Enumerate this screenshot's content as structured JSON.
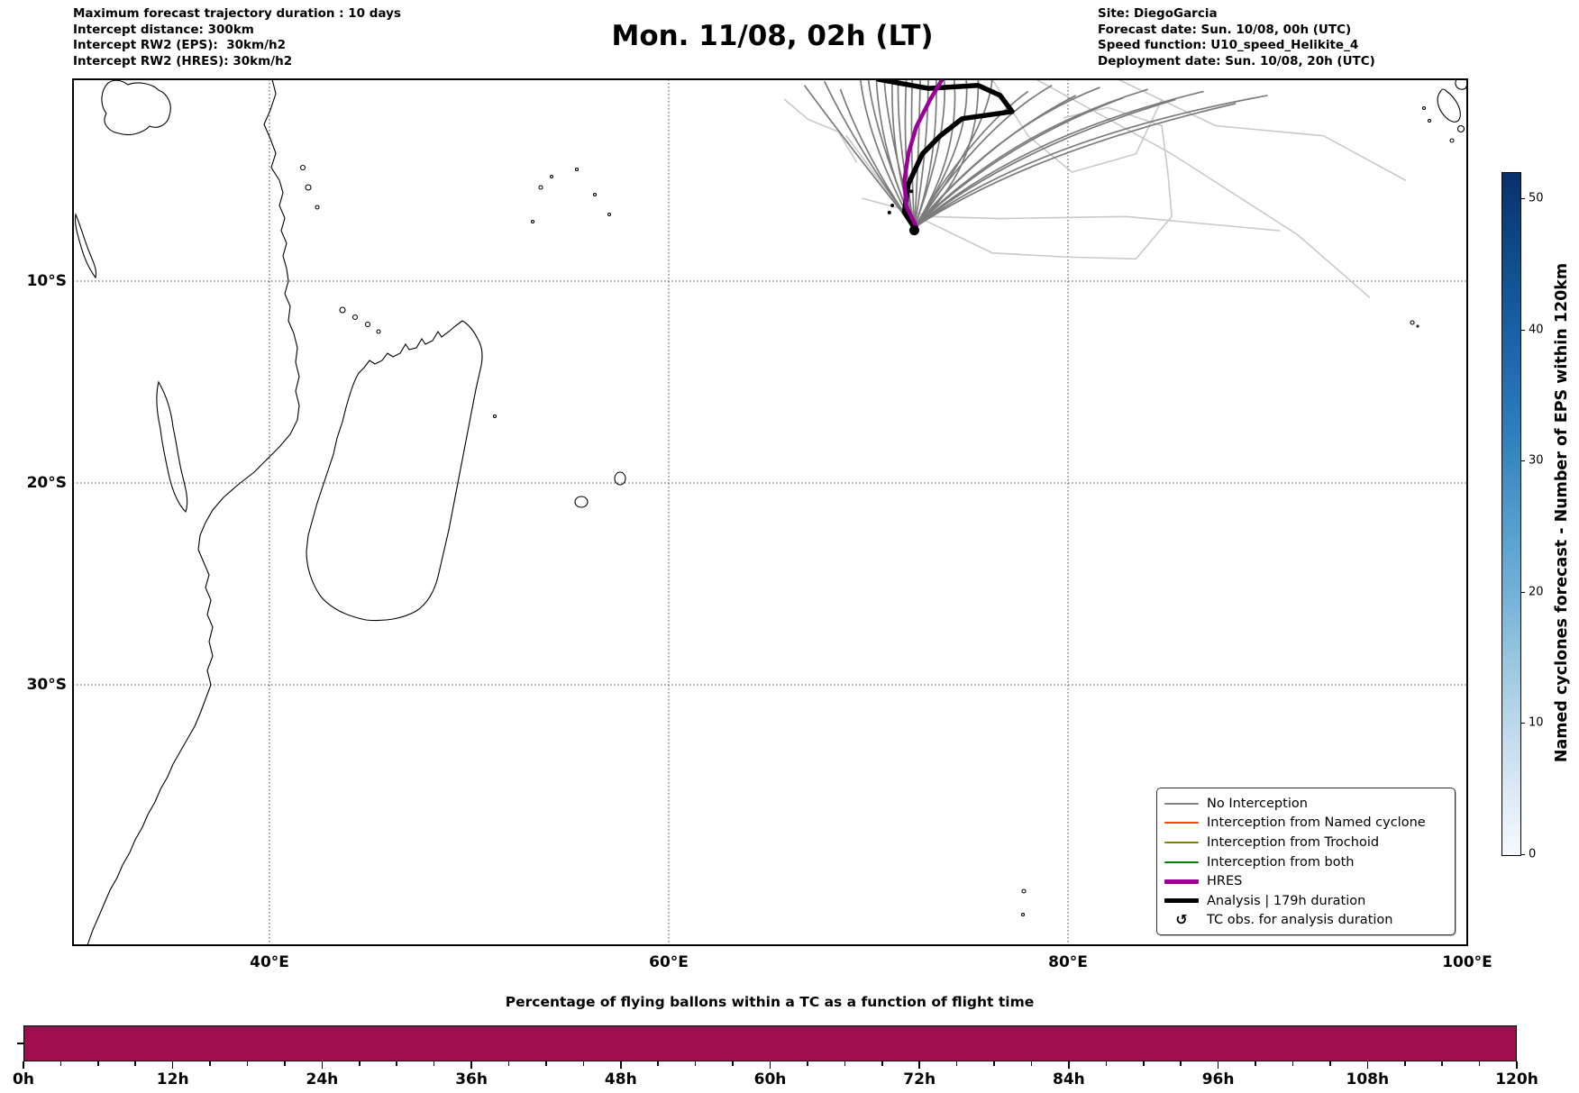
{
  "header": {
    "left_lines": [
      "Maximum forecast trajectory duration : 10 days",
      "Intercept distance: 300km",
      "Intercept RW2 (EPS):  30km/h2",
      "Intercept RW2 (HRES): 30km/h2"
    ],
    "title": "Mon. 11/08, 02h (LT)",
    "right_lines": [
      "Site: DiegoGarcia",
      "Forecast date: Sun. 10/08, 00h (UTC)",
      "Speed function: U10_speed_Helikite_4",
      "Deployment date: Sun. 10/08, 20h (UTC)"
    ]
  },
  "map": {
    "lat_ticks": [
      {
        "label": "10°S",
        "lat": 10
      },
      {
        "label": "20°S",
        "lat": 20
      },
      {
        "label": "30°S",
        "lat": 30
      }
    ],
    "lon_ticks": [
      {
        "label": "40°E",
        "lon": 40
      },
      {
        "label": "60°E",
        "lon": 60
      },
      {
        "label": "80°E",
        "lon": 80
      },
      {
        "label": "100°E",
        "lon": 100
      }
    ],
    "extent_lon": [
      30.2,
      100.0
    ],
    "extent_lat_south": [
      0.0,
      43.4
    ]
  },
  "legend": {
    "items": [
      {
        "label": "No Interception",
        "type": "line",
        "color": "#808080",
        "weight": 2
      },
      {
        "label": "Interception from Named cyclone",
        "type": "line",
        "color": "#ff4500",
        "weight": 2
      },
      {
        "label": "Interception from Trochoid",
        "type": "line",
        "color": "#808000",
        "weight": 2
      },
      {
        "label": "Interception from both",
        "type": "line",
        "color": "#008000",
        "weight": 2
      },
      {
        "label": "HRES",
        "type": "line",
        "color": "#990099",
        "weight": 5
      },
      {
        "label": "Analysis | 179h duration",
        "type": "line",
        "color": "#000000",
        "weight": 5
      },
      {
        "label": "TC obs. for analysis duration",
        "type": "symbol",
        "symbol": "↺",
        "color": "#000000"
      }
    ]
  },
  "colorbar": {
    "title": "Named cyclones forecast - Number of EPS within 120km",
    "ticks": [
      0,
      10,
      20,
      30,
      40,
      50
    ],
    "vmin": 0,
    "vmax": 52,
    "colormap": "Blues"
  },
  "chart_data": [
    {
      "type": "line",
      "name": "trajectory-map",
      "title": "Balloon forecast trajectories from DiegoGarcia",
      "launch_point_lonlat": [
        72.3,
        7.35
      ],
      "analysis_track": {
        "name": "Analysis | 179h duration",
        "color": "#000000",
        "points": [
          [
            70.5,
            0.0
          ],
          [
            73.0,
            0.45
          ],
          [
            75.5,
            0.3
          ],
          [
            76.6,
            0.8
          ],
          [
            77.2,
            1.6
          ],
          [
            74.7,
            1.95
          ],
          [
            73.6,
            2.8
          ],
          [
            72.7,
            3.7
          ],
          [
            72.0,
            5.2
          ],
          [
            71.8,
            6.6
          ],
          [
            72.3,
            7.35
          ]
        ]
      },
      "hres_track": {
        "name": "HRES",
        "color": "#990099",
        "points": [
          [
            73.7,
            0.0
          ],
          [
            73.1,
            1.0
          ],
          [
            72.4,
            2.35
          ],
          [
            72.0,
            3.7
          ],
          [
            71.8,
            5.05
          ],
          [
            71.9,
            6.3
          ],
          [
            72.4,
            7.3
          ]
        ]
      },
      "ensemble_no_interception": {
        "name": "No Interception",
        "color": "#7b7b7b",
        "count": 29,
        "members": [
          {
            "s": [
              69.6,
              0.0
            ],
            "c": [
              70.0,
              3.2
            ]
          },
          {
            "s": [
              70.0,
              0.0
            ],
            "c": [
              70.3,
              2.6
            ]
          },
          {
            "s": [
              70.4,
              0.0
            ],
            "c": [
              70.6,
              3.6
            ]
          },
          {
            "s": [
              70.8,
              0.0
            ],
            "c": [
              70.9,
              2.2
            ]
          },
          {
            "s": [
              71.2,
              0.0
            ],
            "c": [
              71.1,
              3.9
            ]
          },
          {
            "s": [
              71.5,
              0.0
            ],
            "c": [
              71.4,
              2.9
            ]
          },
          {
            "s": [
              71.9,
              0.0
            ],
            "c": [
              71.7,
              4.3
            ]
          },
          {
            "s": [
              72.2,
              0.0
            ],
            "c": [
              72.1,
              3.1
            ]
          },
          {
            "s": [
              72.6,
              0.0
            ],
            "c": [
              72.5,
              4.6
            ]
          },
          {
            "s": [
              73.0,
              0.0
            ],
            "c": [
              73.0,
              3.4
            ]
          },
          {
            "s": [
              73.4,
              0.0
            ],
            "c": [
              73.5,
              4.1
            ]
          },
          {
            "s": [
              73.8,
              0.0
            ],
            "c": [
              74.0,
              2.8
            ]
          },
          {
            "s": [
              74.3,
              0.0
            ],
            "c": [
              74.6,
              3.8
            ]
          },
          {
            "s": [
              74.9,
              0.0
            ],
            "c": [
              75.2,
              3.0
            ]
          },
          {
            "s": [
              75.5,
              0.0
            ],
            "c": [
              75.6,
              4.4
            ]
          },
          {
            "s": [
              76.2,
              0.0
            ],
            "c": [
              76.0,
              2.5
            ]
          },
          {
            "s": [
              78.0,
              0.6
            ],
            "c": [
              75.2,
              2.6
            ]
          },
          {
            "s": [
              79.2,
              0.3
            ],
            "c": [
              75.8,
              2.2
            ]
          },
          {
            "s": [
              80.4,
              0.8
            ],
            "c": [
              76.0,
              3.0
            ]
          },
          {
            "s": [
              81.6,
              0.4
            ],
            "c": [
              76.4,
              2.4
            ]
          },
          {
            "s": [
              82.8,
              0.9
            ],
            "c": [
              76.6,
              3.2
            ]
          },
          {
            "s": [
              84.0,
              0.5
            ],
            "c": [
              77.0,
              2.6
            ]
          },
          {
            "s": [
              85.4,
              1.0
            ],
            "c": [
              77.2,
              3.4
            ]
          },
          {
            "s": [
              86.8,
              0.6
            ],
            "c": [
              77.6,
              2.8
            ]
          },
          {
            "s": [
              88.4,
              1.2
            ],
            "c": [
              78.0,
              3.6
            ]
          },
          {
            "s": [
              90.0,
              0.8
            ],
            "c": [
              78.4,
              2.9
            ]
          },
          {
            "s": [
              66.8,
              0.3
            ],
            "c": [
              68.8,
              3.0
            ]
          },
          {
            "s": [
              67.8,
              0.1
            ],
            "c": [
              69.4,
              3.4
            ]
          },
          {
            "s": [
              68.6,
              0.5
            ],
            "c": [
              69.9,
              4.0
            ]
          }
        ]
      },
      "faint_tracks": {
        "color": "#c9c9c9",
        "lines": [
          [
            [
              68.9,
              2.8
            ],
            [
              71.6,
              6.4
            ],
            [
              76.2,
              8.6
            ],
            [
              79.8,
              8.8
            ],
            [
              83.4,
              8.9
            ],
            [
              85.2,
              6.8
            ],
            [
              85.0,
              4.6
            ],
            [
              84.7,
              2.3
            ],
            [
              82.0,
              1.4
            ],
            [
              79.8,
              1.9
            ]
          ],
          [
            [
              69.7,
              5.9
            ],
            [
              73.1,
              6.8
            ],
            [
              76.6,
              6.9
            ],
            [
              82.9,
              6.8
            ],
            [
              90.6,
              7.5
            ]
          ],
          [
            [
              78.4,
              0.0
            ],
            [
              85.2,
              3.7
            ],
            [
              91.5,
              7.7
            ],
            [
              95.1,
              10.8
            ]
          ],
          [
            [
              82.5,
              0.0
            ],
            [
              87.4,
              2.3
            ],
            [
              92.8,
              2.8
            ],
            [
              96.9,
              5.0
            ]
          ],
          [
            [
              65.8,
              1.0
            ],
            [
              67.0,
              2.0
            ],
            [
              68.5,
              2.6
            ],
            [
              69.4,
              4.1
            ]
          ],
          [
            [
              76.2,
              0.0
            ],
            [
              78.0,
              2.8
            ],
            [
              80.2,
              4.6
            ],
            [
              83.4,
              3.7
            ],
            [
              84.7,
              1.0
            ]
          ]
        ]
      },
      "tc_obs_points_lonlat": [
        [
          71.2,
          6.25
        ],
        [
          71.05,
          6.6
        ],
        [
          72.15,
          5.55
        ]
      ]
    },
    {
      "type": "bar",
      "name": "balloon-percentage",
      "title": "Percentage of flying ballons within a TC as a function of flight time",
      "x_tick_labels": [
        "0h",
        "12h",
        "24h",
        "36h",
        "48h",
        "60h",
        "72h",
        "84h",
        "96h",
        "108h",
        "120h"
      ],
      "x_range_hours": [
        0,
        120
      ],
      "minor_tick_step_hours": 3,
      "constant_value_pct": 100,
      "bar_color": "#A00D4D"
    }
  ]
}
